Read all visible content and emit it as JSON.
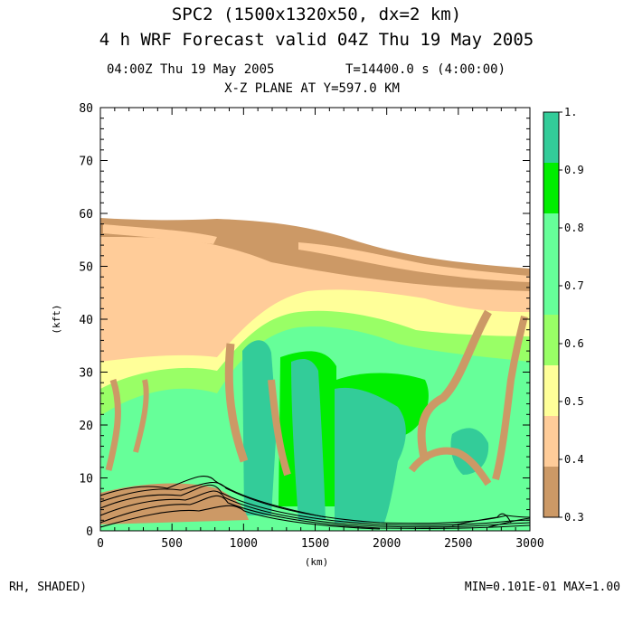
{
  "header": {
    "title_line1": "SPC2 (1500x1320x50, dx=2 km)",
    "title_line2": "4 h WRF Forecast valid 04Z Thu 19 May 2005",
    "time_label": "04:00Z Thu 19 May 2005",
    "seconds_label": "T=14400.0 s (4:00:00)",
    "plane_label": "X-Z PLANE AT Y=597.0 KM"
  },
  "footer": {
    "variable_label": "RH, SHADED)",
    "minmax_label": "MIN=0.101E-01 MAX=1.00"
  },
  "chart_data": {
    "type": "heatmap",
    "title": "X-Z PLANE AT Y=597.0 KM",
    "xlabel": "(km)",
    "ylabel": "(kft)",
    "xlim": [
      0,
      3000
    ],
    "ylim": [
      0,
      80
    ],
    "x_ticks": [
      "0",
      "500",
      "1000",
      "1500",
      "2000",
      "2500",
      "3000"
    ],
    "y_ticks": [
      "0",
      "10",
      "20",
      "30",
      "40",
      "50",
      "60",
      "70",
      "80"
    ],
    "colorbar": {
      "ticks": [
        "0.3",
        "0.4",
        "0.5",
        "0.6",
        "0.7",
        "0.8",
        "0.9",
        "1."
      ],
      "levels": [
        0.3,
        0.4,
        0.5,
        0.6,
        0.7,
        0.8,
        0.9,
        1.0
      ],
      "colors": [
        "#cc9966",
        "#ffcc99",
        "#ffff99",
        "#99ff66",
        "#66ff99",
        "#66ff99",
        "#00ee00",
        "#33cc99"
      ]
    },
    "shading_colors": {
      "tan": "#cc9966",
      "peach": "#ffcc99",
      "yellow": "#ffff99",
      "light_green": "#99ff66",
      "mint": "#66ff99",
      "green": "#00ee00",
      "teal": "#33cc99"
    },
    "moist_layer_top_kft": [
      [
        0,
        59.5
      ],
      [
        300,
        58.5
      ],
      [
        700,
        59.3
      ],
      [
        1000,
        58
      ],
      [
        1500,
        55
      ],
      [
        2000,
        54
      ],
      [
        2500,
        51.5
      ],
      [
        3000,
        50
      ]
    ],
    "line_contours_kft": [
      [
        0,
        7
      ],
      [
        300,
        9
      ],
      [
        600,
        8.5
      ],
      [
        800,
        7.5
      ],
      [
        1000,
        4.5
      ],
      [
        1500,
        1.5
      ],
      [
        2000,
        0.6
      ],
      [
        2500,
        0.8
      ],
      [
        2800,
        2.2
      ],
      [
        3000,
        1.2
      ]
    ]
  }
}
